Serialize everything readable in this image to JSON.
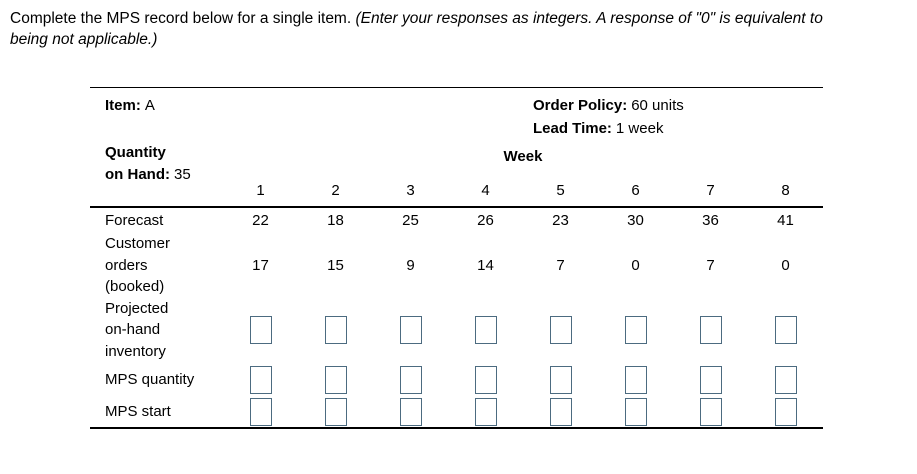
{
  "instructions": {
    "normal": "Complete the MPS record below for a single item. ",
    "italic": "(Enter your responses as integers. A response of \"0\" is equivalent to\nbeing not applicable.)"
  },
  "record": {
    "item_label": "Item:",
    "item_value": "A",
    "order_policy_label": "Order Policy:",
    "order_policy_value": "60 units",
    "lead_time_label": "Lead Time:",
    "lead_time_value": "1 week",
    "qty_on_hand_label_line1": "Quantity",
    "qty_on_hand_label_line2": "on Hand:",
    "qty_on_hand_value": "35"
  },
  "table": {
    "week_header": "Week",
    "weeks": [
      "1",
      "2",
      "3",
      "4",
      "5",
      "6",
      "7",
      "8"
    ],
    "forecast_label": "Forecast",
    "forecast_values": [
      "22",
      "18",
      "25",
      "26",
      "23",
      "30",
      "36",
      "41"
    ],
    "customer_orders_label": "Customer\norders\n(booked)",
    "customer_orders_values": [
      "17",
      "15",
      "9",
      "14",
      "7",
      "0",
      "7",
      "0"
    ],
    "projected_label": "Projected\non-hand\ninventory",
    "mps_quantity_label": "MPS quantity",
    "mps_start_label": "MPS start",
    "input_values": [
      "",
      "",
      "",
      "",
      "",
      "",
      "",
      ""
    ]
  },
  "colors": {
    "table_line": "#000000",
    "answer_box_border": "#4c6b80",
    "text": "#000000",
    "background": "#ffffff"
  }
}
